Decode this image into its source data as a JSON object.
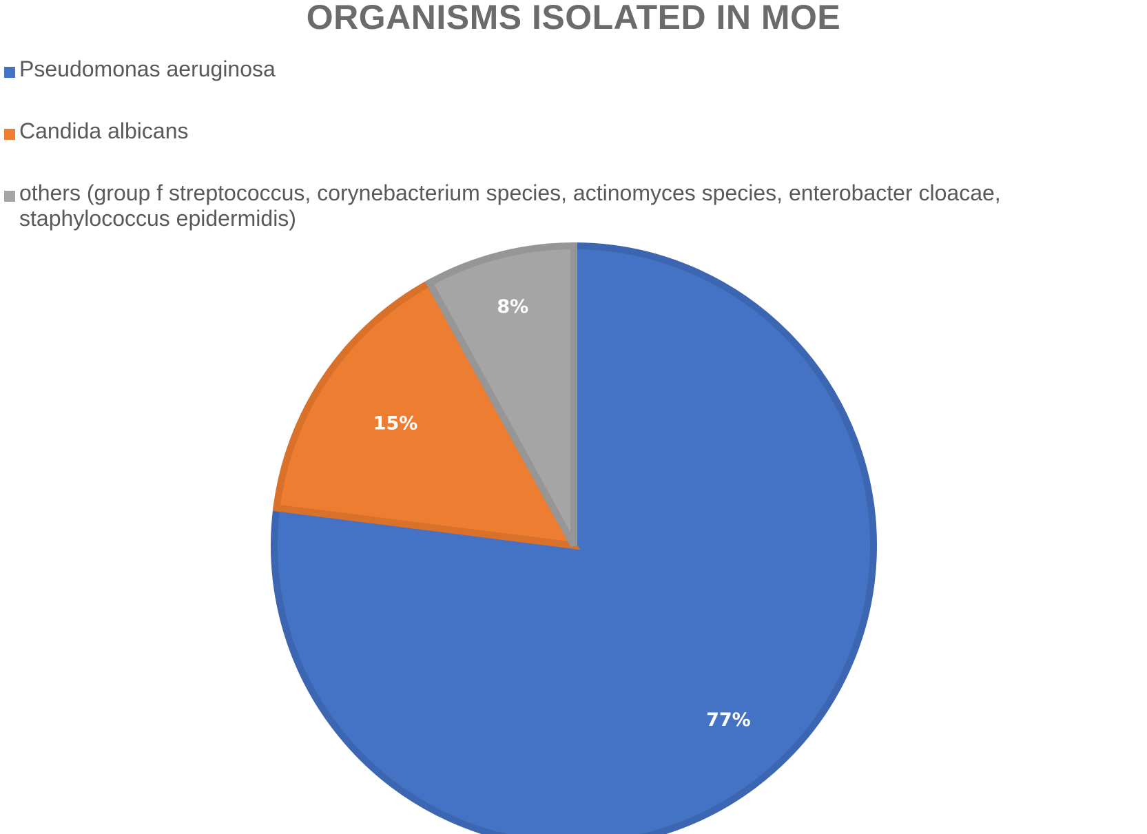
{
  "chart_data": {
    "type": "pie",
    "title": "ORGANISMS ISOLATED IN MOE",
    "legend_position": "top-left",
    "start_angle_deg": 0,
    "direction": "clockwise",
    "slices": [
      {
        "name": "Pseudomonas aeruginosa",
        "value": 77,
        "label": "77%",
        "color": "#4472C4",
        "border": "#3C66B1"
      },
      {
        "name": "Candida albicans",
        "value": 15,
        "label": "15%",
        "color": "#ED7D31",
        "border": "#D9712B"
      },
      {
        "name": "others (group f streptococcus, corynebacterium species, actinomyces species, enterobacter cloacae, staphylococcus epidermidis)",
        "value": 8,
        "label": "8%",
        "color": "#A5A5A5",
        "border": "#969696"
      }
    ]
  }
}
